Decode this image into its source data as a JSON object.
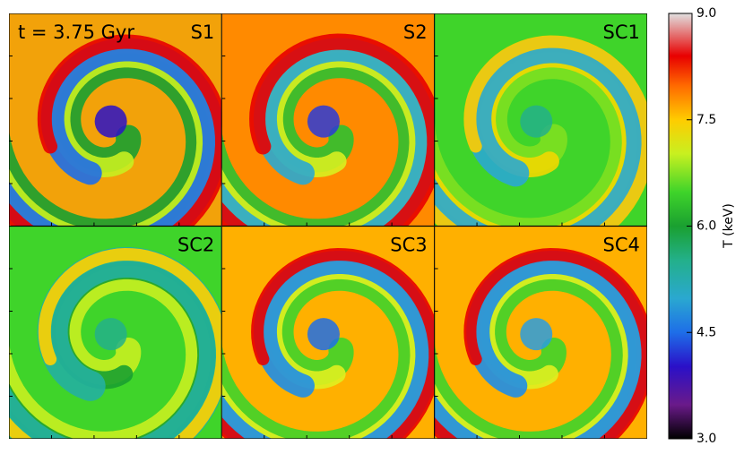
{
  "time_label": "t = 3.75 Gyr",
  "panels": [
    {
      "label": "S1"
    },
    {
      "label": "S2"
    },
    {
      "label": "SC1"
    },
    {
      "label": "SC2"
    },
    {
      "label": "SC3"
    },
    {
      "label": "SC4"
    }
  ],
  "colorbar": {
    "label": "T (keV)",
    "lim": [
      3,
      9
    ],
    "ticks": [
      {
        "value": 3,
        "label": "3.0"
      },
      {
        "value": 4.5,
        "label": "4.5"
      },
      {
        "value": 6,
        "label": "6.0"
      },
      {
        "value": 7.5,
        "label": "7.5"
      },
      {
        "value": 9,
        "label": "9.0"
      }
    ]
  }
}
